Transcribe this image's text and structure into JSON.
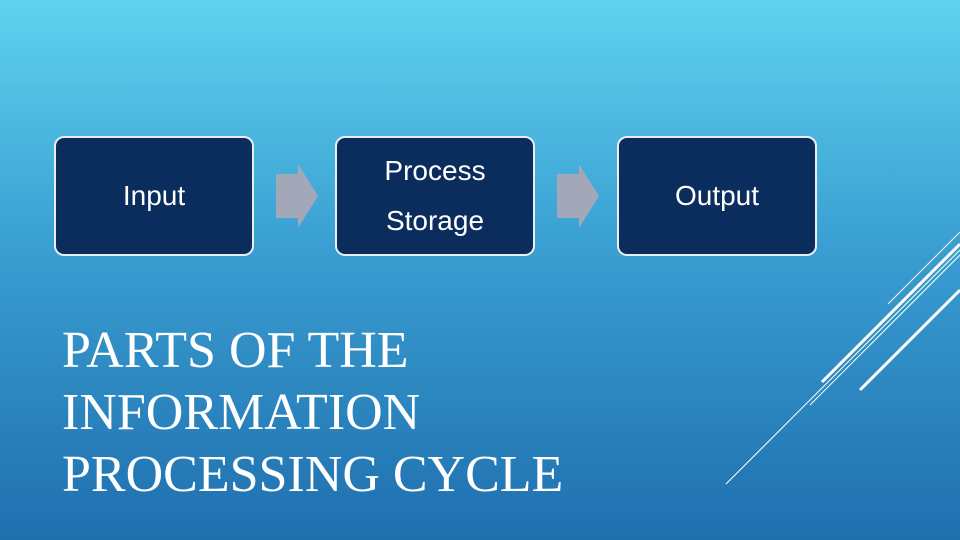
{
  "nodes": [
    {
      "lines": [
        "Input"
      ]
    },
    {
      "lines": [
        "Process",
        "Storage"
      ]
    },
    {
      "lines": [
        "Output"
      ]
    }
  ],
  "title": {
    "lines": [
      "PARTS OF THE",
      "INFORMATION",
      "PROCESSING CYCLE"
    ]
  }
}
